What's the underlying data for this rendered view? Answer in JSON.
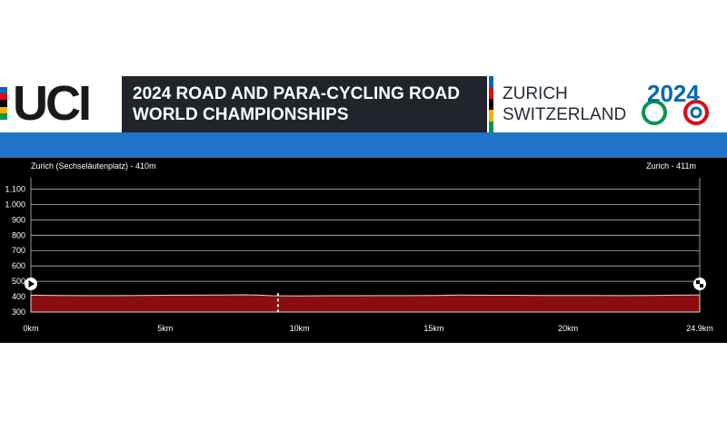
{
  "header": {
    "logo_text": "UCI",
    "title_line1": "2024 ROAD AND PARA-CYCLING ROAD",
    "title_line2": "WORLD CHAMPIONSHIPS",
    "city_line1": "ZURICH",
    "city_line2": "SWITZERLAND",
    "emblem_text": "2024",
    "colors": {
      "rainbow": [
        "#0068b4",
        "#e30613",
        "#000000",
        "#f9b200",
        "#00974a"
      ],
      "band_blue": "#1f73c8",
      "profile_red": "#8a0e10"
    }
  },
  "chart_data": {
    "type": "area",
    "start_label": "Zurich (Sechseläutenplatz) - 410m",
    "end_label": "Zurich - 411m",
    "x_ticks": [
      "0km",
      "5km",
      "10km",
      "15km",
      "20km",
      "24.9km"
    ],
    "x_tick_values": [
      0,
      5,
      10,
      15,
      20,
      24.9
    ],
    "y_ticks": [
      "300",
      "400",
      "500",
      "600",
      "700",
      "800",
      "900",
      "1.000",
      "1.100"
    ],
    "y_tick_values": [
      300,
      400,
      500,
      600,
      700,
      800,
      900,
      1000,
      1100
    ],
    "xlim": [
      0,
      24.9
    ],
    "ylim": [
      300,
      1150
    ],
    "grid": true,
    "x": [
      0,
      1,
      2,
      3,
      4,
      5,
      6,
      7,
      8,
      8.5,
      9,
      10,
      11,
      12,
      13,
      14,
      15,
      16,
      16.5,
      17,
      18,
      19,
      20,
      21,
      22,
      23,
      24,
      24.9
    ],
    "y": [
      410,
      408,
      407,
      407,
      408,
      409,
      410,
      411,
      412,
      410,
      406,
      405,
      406,
      406,
      407,
      407,
      408,
      411,
      410,
      409,
      409,
      408,
      408,
      408,
      407,
      408,
      410,
      411
    ],
    "marker_km": 9.2
  }
}
